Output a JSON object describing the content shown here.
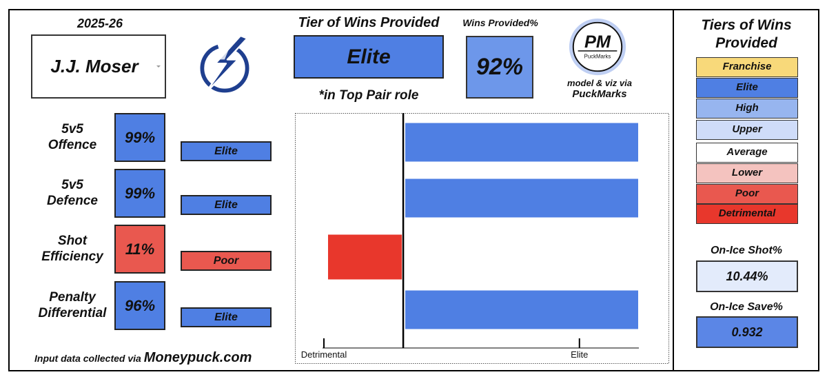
{
  "header": {
    "season": "2025-26",
    "player_name": "J.J. Moser",
    "tier_title": "Tier of Wins Provided",
    "tier_value": "Elite",
    "role_note": "*in Top Pair role",
    "wins_provided_title": "Wins Provided%",
    "wins_provided_value": "92%",
    "brand_logo_text": "PM",
    "brand_logo_subtext": "PuckMarks",
    "credit_line": "model & viz via",
    "credit_name": "PuckMarks"
  },
  "metrics": [
    {
      "label_line1": "5v5",
      "label_line2": "Offence",
      "pct": "99%",
      "tier": "Elite",
      "color": "#4f7fe3"
    },
    {
      "label_line1": "5v5",
      "label_line2": "Defence",
      "pct": "99%",
      "tier": "Elite",
      "color": "#4f7fe3"
    },
    {
      "label_line1": "Shot",
      "label_line2": "Efficiency",
      "pct": "11%",
      "tier": "Poor",
      "color": "#e9584f"
    },
    {
      "label_line1": "Penalty",
      "label_line2": "Differential",
      "pct": "96%",
      "tier": "Elite",
      "color": "#4f7fe3"
    }
  ],
  "footer": {
    "prefix": "Input data collected via ",
    "site": "Moneypuck.com"
  },
  "chart_data": {
    "type": "bar",
    "orientation": "horizontal",
    "categories": [
      "5v5 Offence",
      "5v5 Defence",
      "Shot Efficiency",
      "Penalty Differential"
    ],
    "values": [
      1.0,
      1.0,
      -0.32,
      1.0
    ],
    "colors": [
      "#4f7fe3",
      "#4f7fe3",
      "#e8372c",
      "#4f7fe3"
    ],
    "xlim": [
      -0.32,
      1.0
    ],
    "x_tick_labels": [
      "Detrimental",
      "Elite"
    ],
    "grid": false
  },
  "legend": {
    "title_line1": "Tiers of Wins",
    "title_line2": "Provided",
    "items": [
      {
        "label": "Franchise",
        "color": "#f8d97a"
      },
      {
        "label": "Elite",
        "color": "#4f7fe3"
      },
      {
        "label": "High",
        "color": "#97b5ef"
      },
      {
        "label": "Upper",
        "color": "#cfdcf9"
      },
      {
        "label": "Average",
        "color": "#ffffff"
      },
      {
        "label": "Lower",
        "color": "#f4c3bf"
      },
      {
        "label": "Poor",
        "color": "#e9584f"
      },
      {
        "label": "Detrimental",
        "color": "#e8372c"
      }
    ]
  },
  "on_ice": {
    "shot_title": "On-Ice Shot%",
    "shot_value": "10.44%",
    "save_title": "On-Ice Save%",
    "save_value": "0.932"
  }
}
